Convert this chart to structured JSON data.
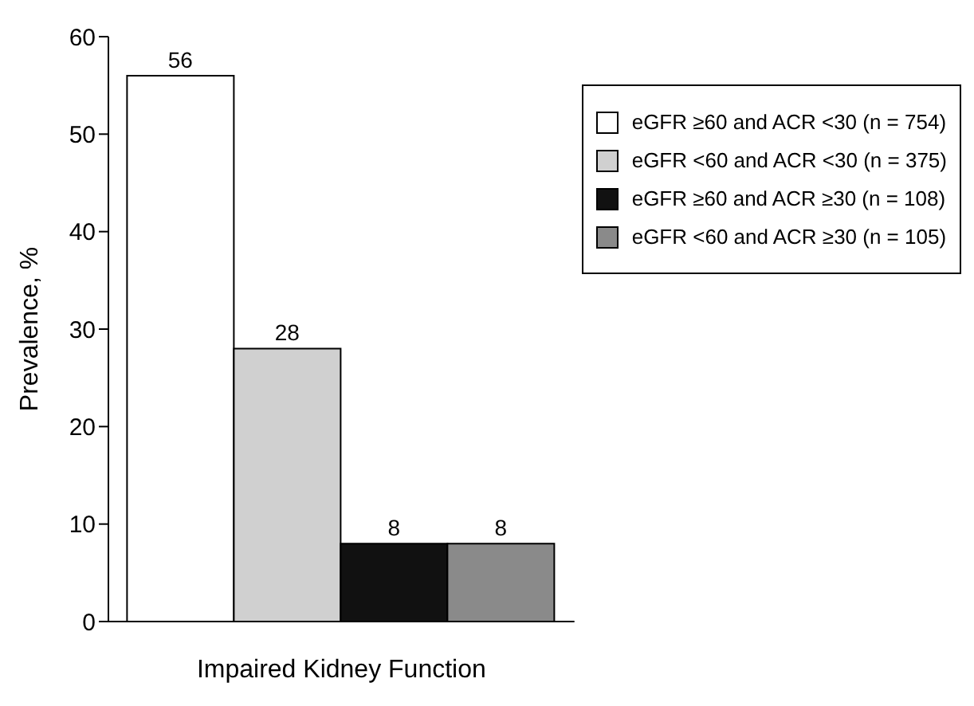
{
  "chart_data": {
    "type": "bar",
    "xlabel": "Impaired Kidney Function",
    "ylabel": "Prevalence, %",
    "categories": [
      null,
      null,
      null,
      null
    ],
    "series": [
      {
        "name": "eGFR ≥60 and ACR <30 (n = 754)",
        "color": "#ffffff",
        "values": [
          56,
          null,
          null,
          null
        ]
      },
      {
        "name": "eGFR <60 and ACR <30 (n = 375)",
        "color": "#d0d0d0",
        "values": [
          null,
          28,
          null,
          null
        ]
      },
      {
        "name": "eGFR ≥60 and ACR ≥30 (n = 108)",
        "color": "#111111",
        "values": [
          null,
          null,
          8,
          null
        ]
      },
      {
        "name": "eGFR <60 and ACR ≥30 (n = 105)",
        "color": "#8a8a8a",
        "values": [
          null,
          null,
          null,
          8
        ]
      }
    ],
    "ylim": [
      0,
      60
    ],
    "yticks": [
      0,
      10,
      20,
      30,
      40,
      50,
      60
    ],
    "grid": false,
    "legend": "top right",
    "data_labels": true
  }
}
